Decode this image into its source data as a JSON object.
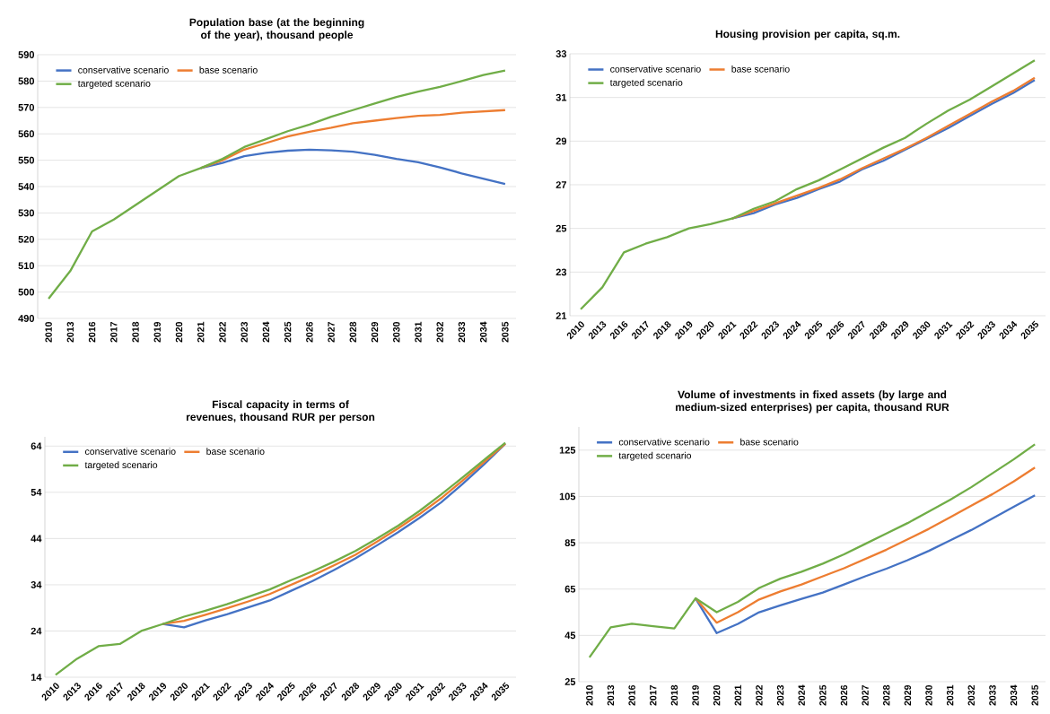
{
  "chart_data": [
    {
      "type": "line",
      "title": "Population base (at the beginning of the year), thousand people",
      "categories": [
        "2010",
        "2013",
        "2016",
        "2017",
        "2018",
        "2019",
        "2020",
        "2021",
        "2022",
        "2023",
        "2024",
        "2025",
        "2026",
        "2027",
        "2028",
        "2029",
        "2030",
        "2031",
        "2032",
        "2033",
        "2034",
        "2035"
      ],
      "ylim": [
        490,
        590
      ],
      "yticks": [
        490,
        500,
        510,
        520,
        530,
        540,
        550,
        560,
        570,
        580,
        590
      ],
      "grid": "y",
      "legend": "top left",
      "series": [
        {
          "name": "conservative scenario",
          "color": "#4472c4",
          "values": [
            null,
            null,
            null,
            null,
            null,
            null,
            null,
            547,
            549,
            551.5,
            552.8,
            553.6,
            554,
            553.7,
            553.2,
            552,
            550.5,
            549.2,
            547.3,
            545,
            543,
            541
          ]
        },
        {
          "name": "base scenario",
          "color": "#ed7d31",
          "values": [
            null,
            null,
            null,
            null,
            null,
            null,
            null,
            547,
            550,
            554,
            556.5,
            559,
            560.8,
            562.3,
            564,
            565,
            566,
            566.8,
            567.2,
            568,
            568.5,
            569
          ]
        },
        {
          "name": "targeted scenario",
          "color": "#70ad47",
          "values": [
            497.5,
            508,
            523,
            527.5,
            533,
            538.5,
            544,
            547,
            550.5,
            555,
            558,
            561,
            563.5,
            566.5,
            569,
            571.5,
            574,
            576,
            577.8,
            580,
            582.3,
            584
          ]
        }
      ]
    },
    {
      "type": "line",
      "title": "Housing provision per capita, sq.m.",
      "categories": [
        "2010",
        "2013",
        "2016",
        "2017",
        "2018",
        "2019",
        "2020",
        "2021",
        "2022",
        "2023",
        "2024",
        "2025",
        "2026",
        "2027",
        "2028",
        "2029",
        "2030",
        "2031",
        "2032",
        "2033",
        "2034",
        "2035"
      ],
      "ylim": [
        21,
        33
      ],
      "yticks": [
        21,
        23,
        25,
        27,
        29,
        31,
        33
      ],
      "grid": "y",
      "legend": "top left",
      "series": [
        {
          "name": "conservative scenario",
          "color": "#4472c4",
          "values": [
            null,
            null,
            null,
            null,
            null,
            null,
            null,
            25.45,
            25.7,
            26.1,
            26.4,
            26.8,
            27.15,
            27.7,
            28.1,
            28.6,
            29.1,
            29.6,
            30.15,
            30.7,
            31.2,
            31.8
          ]
        },
        {
          "name": "base scenario",
          "color": "#ed7d31",
          "values": [
            null,
            null,
            null,
            null,
            null,
            null,
            null,
            25.45,
            25.8,
            26.15,
            26.5,
            26.85,
            27.25,
            27.75,
            28.2,
            28.65,
            29.15,
            29.7,
            30.25,
            30.8,
            31.3,
            31.9
          ]
        },
        {
          "name": "targeted scenario",
          "color": "#70ad47",
          "values": [
            21.3,
            22.3,
            23.9,
            24.3,
            24.6,
            25.0,
            25.2,
            25.45,
            25.9,
            26.25,
            26.8,
            27.2,
            27.7,
            28.2,
            28.7,
            29.15,
            29.8,
            30.4,
            30.9,
            31.5,
            32.1,
            32.7
          ]
        }
      ]
    },
    {
      "type": "line",
      "title": "Fiscal capacity in terms of revenues, thousand RUR per person",
      "categories": [
        "2010",
        "2013",
        "2016",
        "2017",
        "2018",
        "2019",
        "2020",
        "2021",
        "2022",
        "2023",
        "2024",
        "2025",
        "2026",
        "2027",
        "2028",
        "2029",
        "2030",
        "2031",
        "2032",
        "2033",
        "2034",
        "2035"
      ],
      "ylim": [
        14,
        66
      ],
      "yticks": [
        14,
        24,
        34,
        44,
        54,
        64
      ],
      "grid": "y",
      "legend": "top left",
      "series": [
        {
          "name": "conservative scenario",
          "color": "#4472c4",
          "values": [
            null,
            null,
            null,
            null,
            null,
            25.5,
            24.8,
            26.3,
            27.6,
            29.1,
            30.6,
            32.7,
            34.8,
            37.2,
            39.7,
            42.5,
            45.4,
            48.5,
            51.8,
            55.8,
            60,
            64.5
          ]
        },
        {
          "name": "base scenario",
          "color": "#ed7d31",
          "values": [
            null,
            null,
            null,
            null,
            null,
            25.5,
            26.2,
            27.5,
            28.9,
            30.4,
            32,
            34,
            36,
            38.2,
            40.5,
            43.3,
            46.2,
            49.3,
            52.7,
            56.5,
            60.5,
            64.5
          ]
        },
        {
          "name": "targeted scenario",
          "color": "#70ad47",
          "values": [
            14.5,
            18,
            20.7,
            21.2,
            24,
            25.5,
            27.1,
            28.4,
            29.8,
            31.4,
            33,
            35,
            36.9,
            39,
            41.3,
            44,
            46.8,
            50,
            53.5,
            57.2,
            61,
            64.7
          ]
        }
      ]
    },
    {
      "type": "line",
      "title": "Volume of investments in fixed assets (by large and medium-sized enterprises) per capita, thousand RUR",
      "categories": [
        "2010",
        "2013",
        "2016",
        "2017",
        "2018",
        "2019",
        "2020",
        "2021",
        "2022",
        "2023",
        "2024",
        "2025",
        "2026",
        "2027",
        "2028",
        "2029",
        "2030",
        "2031",
        "2032",
        "2033",
        "2034",
        "2035"
      ],
      "ylim": [
        25,
        135
      ],
      "yticks": [
        25,
        45,
        65,
        85,
        105,
        125
      ],
      "grid": "y",
      "legend": "top left",
      "series": [
        {
          "name": "conservative scenario",
          "color": "#4472c4",
          "values": [
            null,
            null,
            null,
            null,
            null,
            61,
            46,
            50,
            55,
            58,
            60.8,
            63.5,
            67,
            70.5,
            73.8,
            77.5,
            81.5,
            86,
            90.5,
            95.5,
            100.5,
            105.5
          ]
        },
        {
          "name": "base scenario",
          "color": "#ed7d31",
          "values": [
            null,
            null,
            null,
            null,
            null,
            61,
            50.5,
            55,
            60.5,
            64,
            67,
            70.5,
            74,
            78,
            82,
            86.5,
            91,
            96,
            101,
            106,
            111.5,
            117.5
          ]
        },
        {
          "name": "targeted scenario",
          "color": "#70ad47",
          "values": [
            35.5,
            48.5,
            50,
            49,
            48,
            61,
            55,
            59.5,
            65.5,
            69.5,
            72.5,
            76,
            80,
            84.5,
            89,
            93.5,
            98.5,
            103.5,
            109,
            115,
            121,
            127.5
          ]
        }
      ]
    }
  ]
}
